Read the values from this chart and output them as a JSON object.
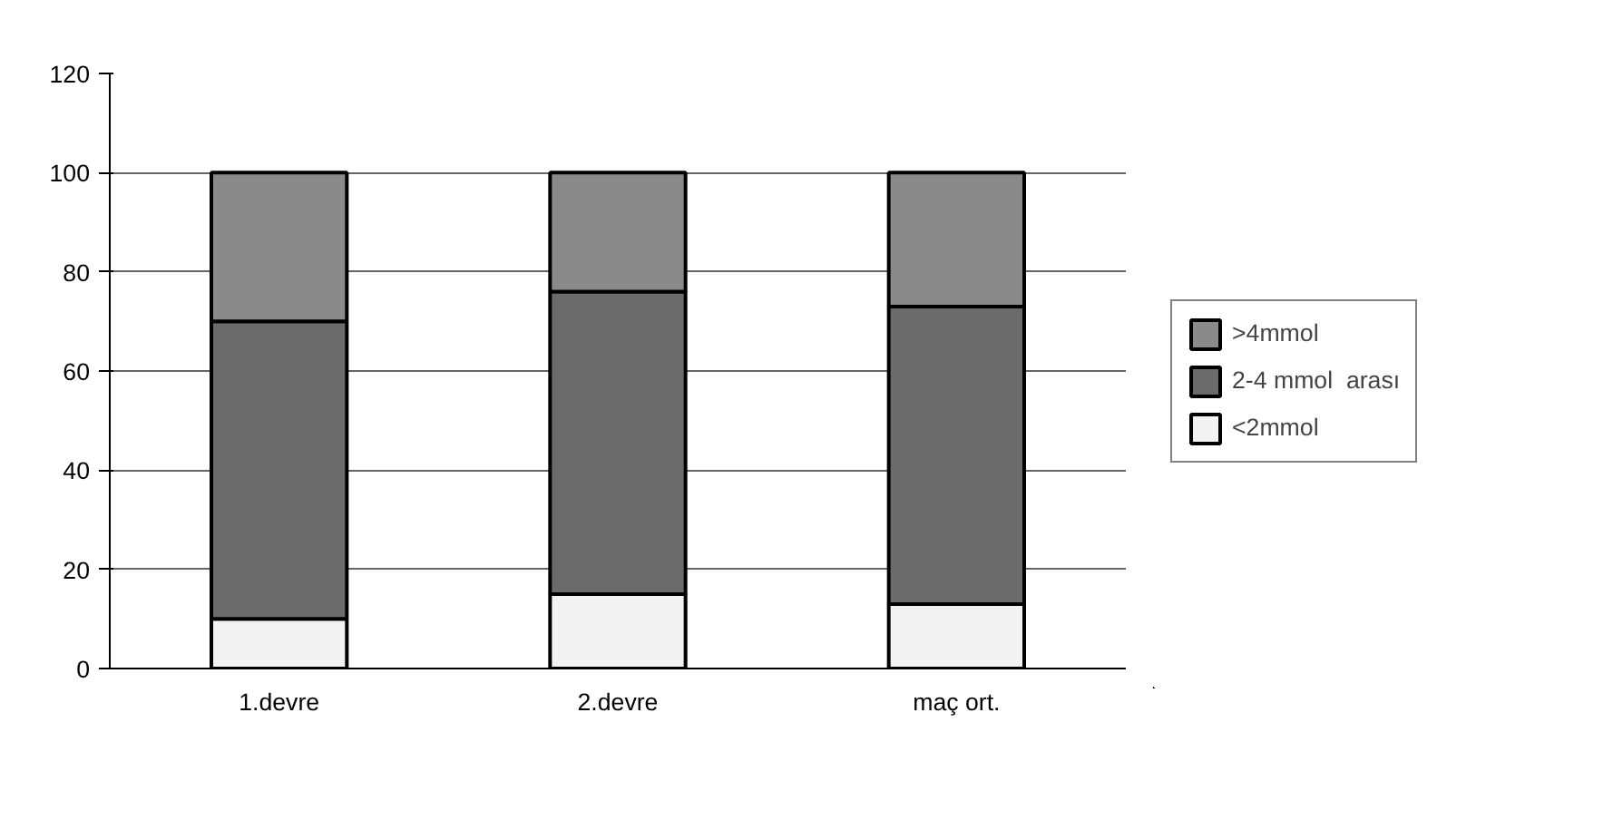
{
  "chart_data": {
    "type": "bar",
    "stacked": true,
    "categories": [
      "1.devre",
      "2.devre",
      "maç ort."
    ],
    "series": [
      {
        "name": "<2mmol",
        "color": "#f2f2f2",
        "values": [
          10,
          15,
          13
        ]
      },
      {
        "name": "2-4 mmol  arası",
        "color": "#6b6b6b",
        "values": [
          60,
          61,
          60
        ]
      },
      {
        "name": ">4mmol",
        "color": "#8a8a8a",
        "values": [
          30,
          24,
          27
        ]
      }
    ],
    "ylim": [
      0,
      120
    ],
    "yticks": [
      0,
      20,
      40,
      60,
      80,
      100,
      120
    ],
    "grid": "y",
    "legend": "right"
  }
}
